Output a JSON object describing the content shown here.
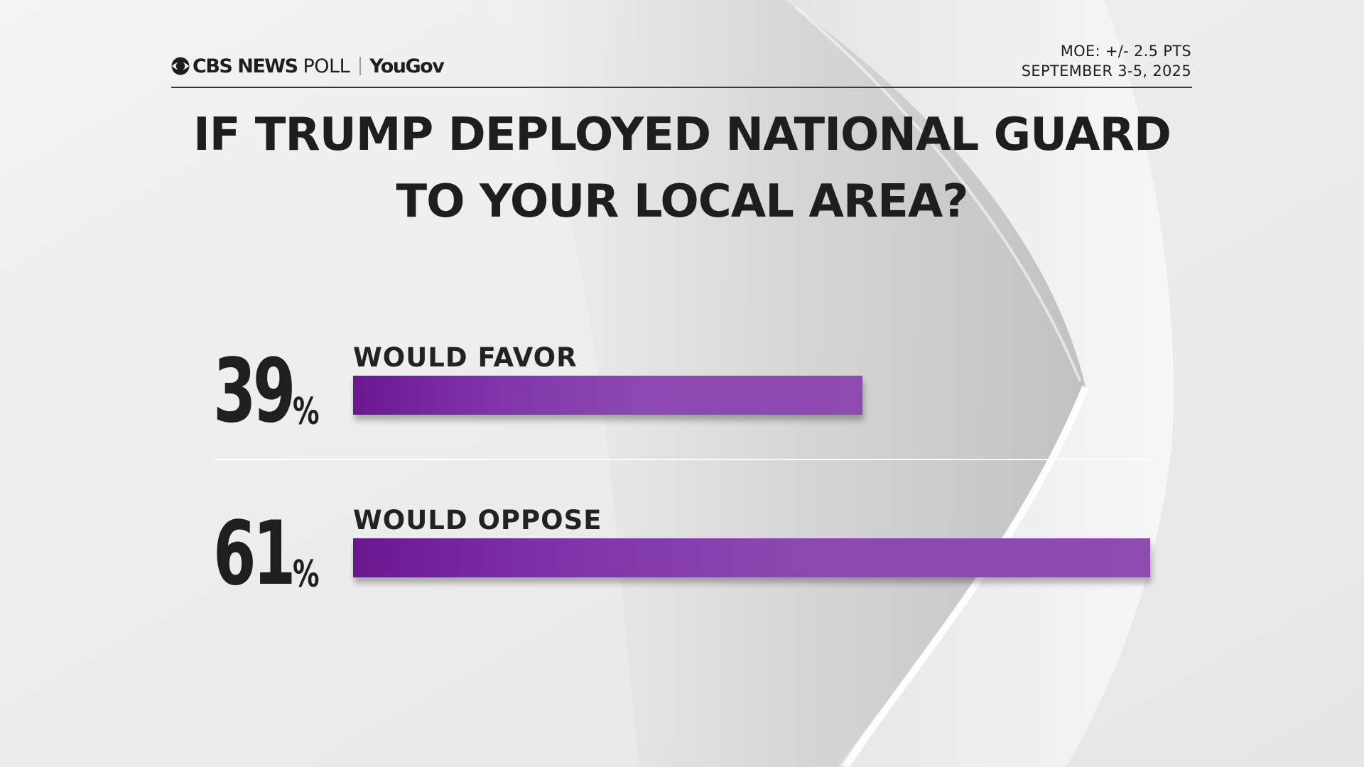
{
  "header": {
    "brand_cbs": "CBS NEWS",
    "brand_poll": "POLL",
    "brand_partner": "YouGov",
    "moe": "MOE: +/- 2.5 PTS",
    "dates": "SEPTEMBER 3-5, 2025"
  },
  "icons": {
    "brand_logo": "cbs-eye-icon"
  },
  "colors": {
    "bar_start": "#6a1890",
    "bar_end": "#8e4bb0",
    "text": "#1e1e1e"
  },
  "chart_data": {
    "type": "bar",
    "orientation": "horizontal",
    "title_line1": "IF TRUMP DEPLOYED NATIONAL GUARD",
    "title_line2": "TO YOUR LOCAL AREA?",
    "categories": [
      "WOULD FAVOR",
      "WOULD OPPOSE"
    ],
    "values": [
      39,
      61
    ],
    "value_labels": [
      "39",
      "61"
    ],
    "unit": "%",
    "xlim": [
      0,
      61
    ],
    "grid": false,
    "legend": "none"
  }
}
